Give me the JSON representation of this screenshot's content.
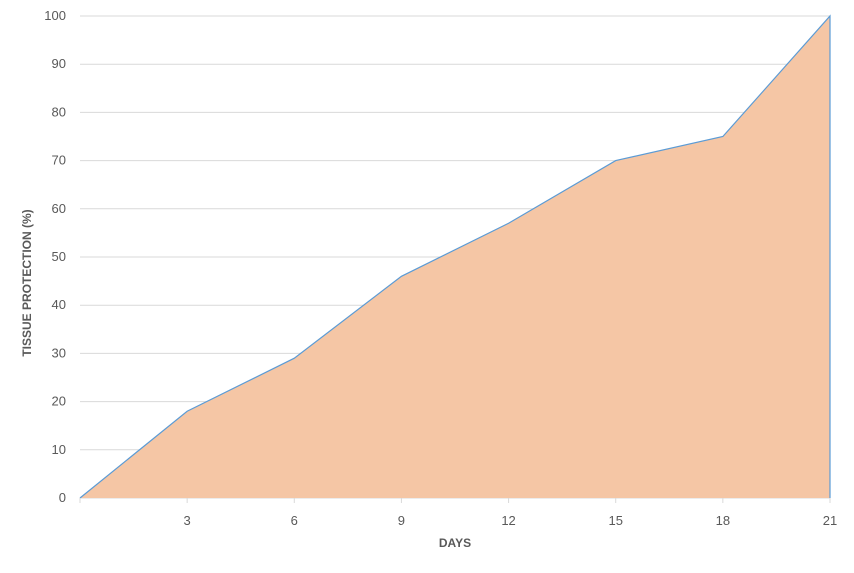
{
  "chart_data": {
    "type": "area",
    "title": "",
    "xlabel": "DAYS",
    "ylabel": "TISSUE PROTECTION (%)",
    "x": [
      0,
      3,
      6,
      9,
      12,
      15,
      18,
      21
    ],
    "series": [
      {
        "values": [
          0,
          18,
          29,
          46,
          57,
          70,
          75,
          100
        ]
      }
    ],
    "xticks": [
      "3",
      "6",
      "9",
      "12",
      "15",
      "18",
      "21"
    ],
    "yticks": [
      "0",
      "10",
      "20",
      "30",
      "40",
      "50",
      "60",
      "70",
      "80",
      "90",
      "100"
    ],
    "xlim": [
      0,
      21
    ],
    "ylim": [
      0,
      100
    ],
    "grid": true,
    "legend": "none",
    "colors": {
      "fill": "#f5c6a5",
      "line": "#5b9bd5",
      "grid": "#d9d9d9"
    }
  }
}
